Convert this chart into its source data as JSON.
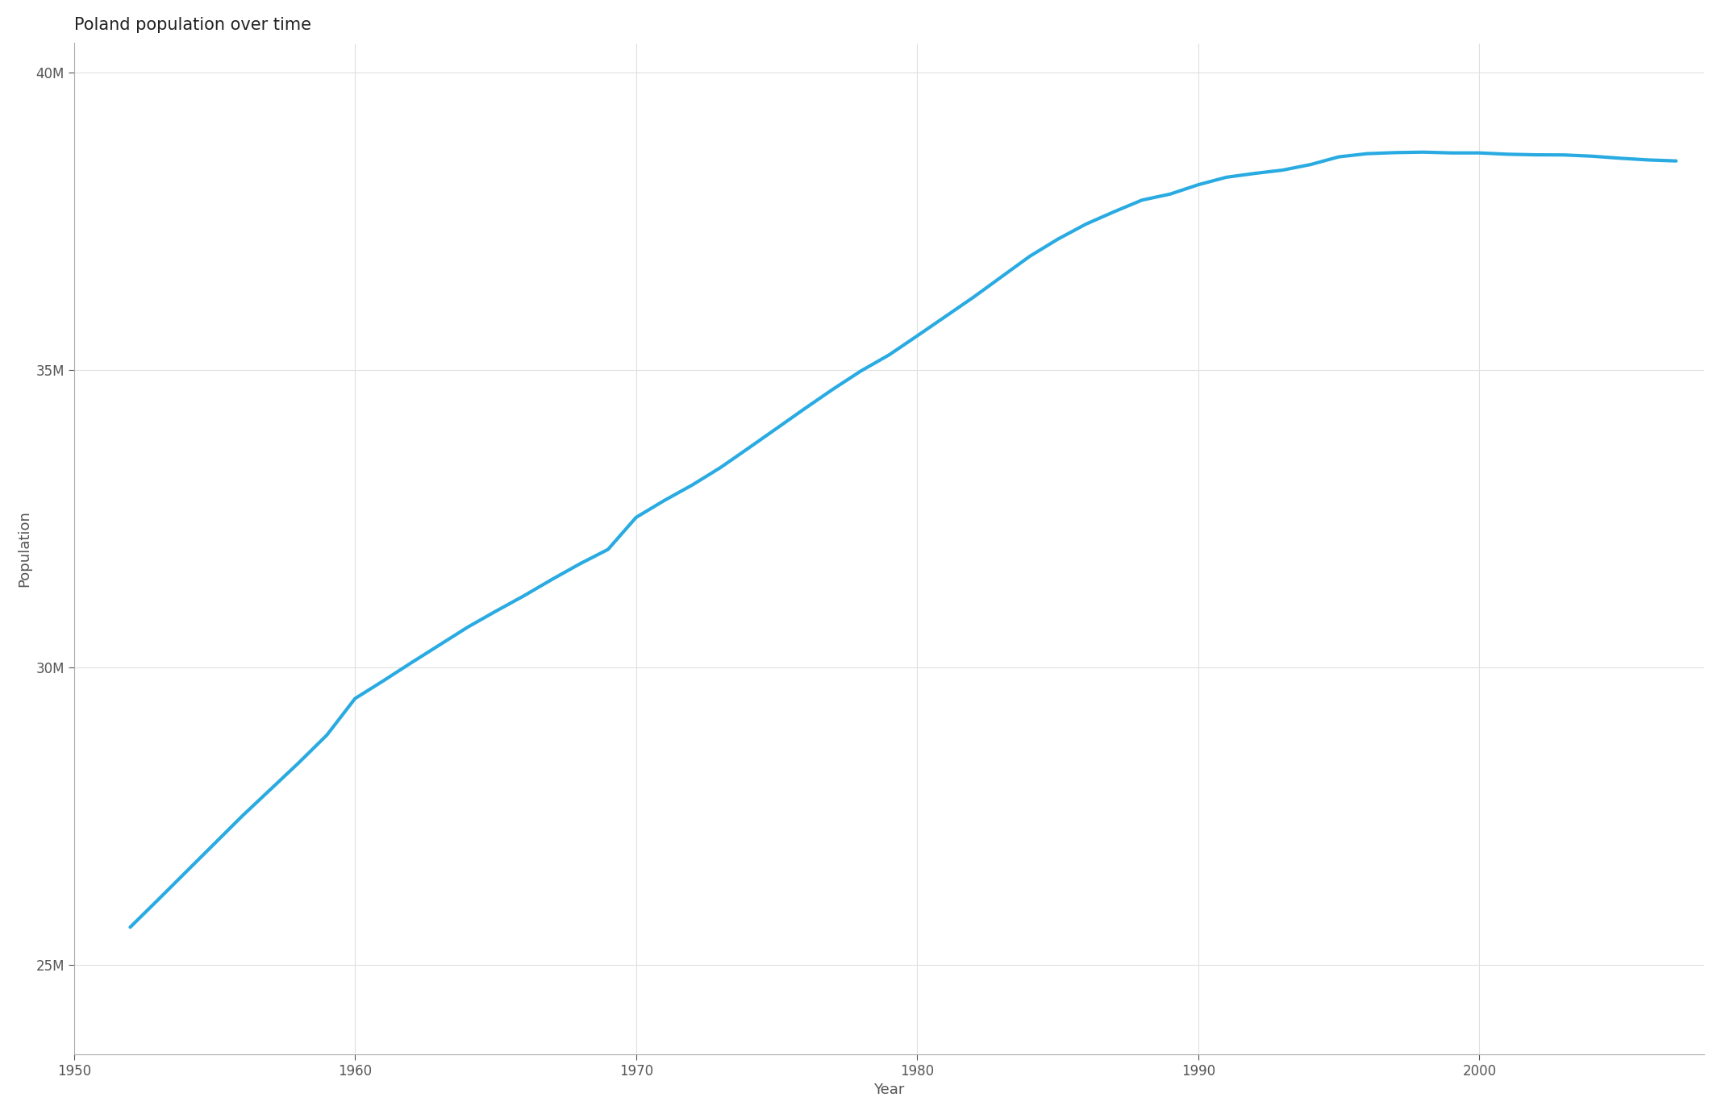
{
  "title": "Poland population over time",
  "xlabel": "Year",
  "ylabel": "Population",
  "line_color": "#29ABE2",
  "line_width": 3.0,
  "background_color": "#ffffff",
  "plot_background": "#ffffff",
  "grid_color": "#e0e0e0",
  "years": [
    1952,
    1953,
    1954,
    1955,
    1956,
    1957,
    1958,
    1959,
    1960,
    1961,
    1962,
    1963,
    1964,
    1965,
    1966,
    1967,
    1968,
    1969,
    1970,
    1971,
    1972,
    1973,
    1974,
    1975,
    1976,
    1977,
    1978,
    1979,
    1980,
    1981,
    1982,
    1983,
    1984,
    1985,
    1986,
    1987,
    1988,
    1989,
    1990,
    1991,
    1992,
    1993,
    1994,
    1995,
    1996,
    1997,
    1998,
    1999,
    2000,
    2001,
    2002,
    2003,
    2004,
    2005,
    2006,
    2007
  ],
  "population": [
    25635000,
    26100000,
    26571000,
    27041000,
    27511000,
    27956000,
    28401000,
    28867000,
    29480000,
    29776000,
    30081000,
    30379000,
    30678000,
    30946000,
    31205000,
    31481000,
    31745000,
    31987000,
    32526000,
    32809000,
    33071000,
    33363000,
    33691000,
    34022000,
    34355000,
    34680000,
    34988000,
    35258000,
    35578000,
    35902000,
    36227000,
    36571000,
    36914000,
    37203000,
    37456000,
    37664000,
    37861000,
    37962000,
    38119000,
    38245000,
    38309000,
    38365000,
    38459000,
    38588000,
    38641000,
    38659000,
    38667000,
    38654000,
    38654000,
    38632000,
    38622000,
    38620000,
    38599000,
    38565000,
    38536000,
    38519000
  ],
  "xlim": [
    1950,
    2008
  ],
  "ylim": [
    23500000,
    40500000
  ],
  "yticks": [
    25000000,
    30000000,
    35000000,
    40000000
  ],
  "xticks": [
    1950,
    1960,
    1970,
    1980,
    1990,
    2000
  ],
  "title_fontsize": 15,
  "axis_label_fontsize": 13,
  "tick_fontsize": 12
}
